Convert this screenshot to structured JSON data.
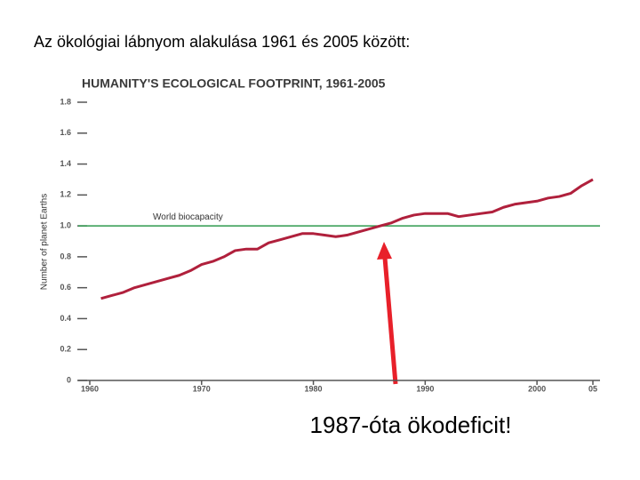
{
  "heading": "Az ökológiai lábnyom alakulása 1961 és 2005 között:",
  "caption": "1987-óta ökodeficit!",
  "chart_data": {
    "type": "line",
    "title": "HUMANITY'S ECOLOGICAL FOOTPRINT, 1961-2005",
    "y_label": "Number of planet Earths",
    "x": [
      1961,
      1962,
      1963,
      1964,
      1965,
      1966,
      1967,
      1968,
      1969,
      1970,
      1971,
      1972,
      1973,
      1974,
      1975,
      1976,
      1977,
      1978,
      1979,
      1980,
      1981,
      1982,
      1983,
      1984,
      1985,
      1986,
      1987,
      1988,
      1989,
      1990,
      1991,
      1992,
      1993,
      1994,
      1995,
      1996,
      1997,
      1998,
      1999,
      2000,
      2001,
      2002,
      2003,
      2004,
      2005
    ],
    "values": [
      0.53,
      0.55,
      0.57,
      0.6,
      0.62,
      0.64,
      0.66,
      0.68,
      0.71,
      0.75,
      0.77,
      0.8,
      0.84,
      0.85,
      0.85,
      0.89,
      0.91,
      0.93,
      0.95,
      0.95,
      0.94,
      0.93,
      0.94,
      0.96,
      0.98,
      1.0,
      1.02,
      1.05,
      1.07,
      1.08,
      1.08,
      1.08,
      1.06,
      1.07,
      1.08,
      1.09,
      1.12,
      1.14,
      1.15,
      1.16,
      1.18,
      1.19,
      1.21,
      1.26,
      1.3
    ],
    "color": "#b0203c",
    "biocapacity": 1,
    "biocapacity_label": "World biocapacity",
    "biocapacity_color": "#2e9a4e",
    "xlim": [
      1960,
      2005
    ],
    "xticks": [
      1960,
      1970,
      1980,
      1990,
      2000,
      {
        "value": 2005,
        "label": "05"
      }
    ],
    "ylim": [
      0,
      1.8
    ],
    "yticks": [
      0,
      0.2,
      0.4,
      0.6,
      0.8,
      {
        "value": 1,
        "label": "1.0"
      },
      1.2,
      1.4,
      1.6,
      1.8
    ]
  }
}
